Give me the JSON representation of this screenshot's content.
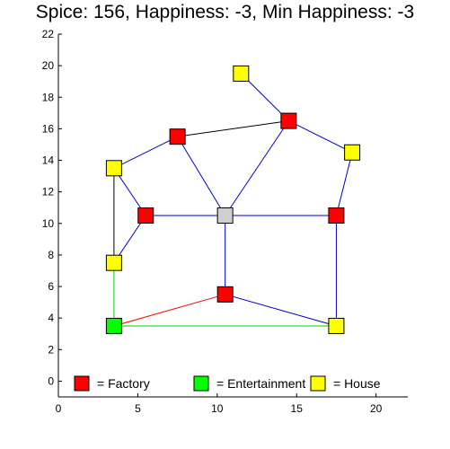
{
  "title": "Spice: 156, Happiness: -3, Min Happiness: -3",
  "chart_data": {
    "type": "network",
    "xlim": [
      0,
      22
    ],
    "ylim": [
      -1,
      22
    ],
    "x_ticks": [
      0,
      5,
      10,
      15,
      20
    ],
    "y_ticks": [
      0,
      2,
      4,
      6,
      8,
      10,
      12,
      14,
      16,
      18,
      20,
      22
    ],
    "node_colors": {
      "factory": "#ff0000",
      "entertainment": "#00ff00",
      "house": "#ffff00",
      "selected": "#d0d0d0"
    },
    "nodes": [
      {
        "id": "h1",
        "kind": "house",
        "x": 11.5,
        "y": 19.5
      },
      {
        "id": "f1",
        "kind": "factory",
        "x": 14.5,
        "y": 16.5
      },
      {
        "id": "f2",
        "kind": "factory",
        "x": 7.5,
        "y": 15.5
      },
      {
        "id": "h2",
        "kind": "house",
        "x": 18.5,
        "y": 14.5
      },
      {
        "id": "h3",
        "kind": "house",
        "x": 3.5,
        "y": 13.5
      },
      {
        "id": "f3",
        "kind": "factory",
        "x": 5.5,
        "y": 10.5
      },
      {
        "id": "s1",
        "kind": "selected",
        "x": 10.5,
        "y": 10.5
      },
      {
        "id": "f4",
        "kind": "factory",
        "x": 17.5,
        "y": 10.5
      },
      {
        "id": "h4",
        "kind": "house",
        "x": 3.5,
        "y": 7.5
      },
      {
        "id": "f5",
        "kind": "factory",
        "x": 10.5,
        "y": 5.5
      },
      {
        "id": "e1",
        "kind": "entertainment",
        "x": 3.5,
        "y": 3.5
      },
      {
        "id": "h5",
        "kind": "house",
        "x": 17.5,
        "y": 3.5
      }
    ],
    "edges": [
      {
        "from": "h1",
        "to": "f1",
        "color": "#0000cc"
      },
      {
        "from": "f2",
        "to": "f1",
        "color": "#000000"
      },
      {
        "from": "f1",
        "to": "h2",
        "color": "#0000cc"
      },
      {
        "from": "f1",
        "to": "s1",
        "color": "#0000cc"
      },
      {
        "from": "f2",
        "to": "s1",
        "color": "#0000cc"
      },
      {
        "from": "h3",
        "to": "f2",
        "color": "#0000cc"
      },
      {
        "from": "h3",
        "to": "f3",
        "color": "#0000cc"
      },
      {
        "from": "h3",
        "to": "h4",
        "color": "#000000"
      },
      {
        "from": "f3",
        "to": "h4",
        "color": "#0000cc"
      },
      {
        "from": "f3",
        "to": "s1",
        "color": "#0000cc"
      },
      {
        "from": "s1",
        "to": "f4",
        "color": "#0000cc"
      },
      {
        "from": "h2",
        "to": "f4",
        "color": "#0000cc"
      },
      {
        "from": "s1",
        "to": "f5",
        "color": "#0000cc"
      },
      {
        "from": "f4",
        "to": "h5",
        "color": "#0000cc"
      },
      {
        "from": "f5",
        "to": "h5",
        "color": "#0000cc"
      },
      {
        "from": "f5",
        "to": "e1",
        "color": "#ff0000"
      },
      {
        "from": "h4",
        "to": "e1",
        "color": "#00cc00"
      },
      {
        "from": "e1",
        "to": "h5",
        "color": "#00cc00"
      }
    ],
    "legend": {
      "position": "bottom",
      "items": [
        {
          "kind": "factory",
          "label": "= Factory",
          "color": "#ff0000"
        },
        {
          "kind": "entertainment",
          "label": "= Entertainment",
          "color": "#00ff00"
        },
        {
          "kind": "house",
          "label": "= House",
          "color": "#ffff00"
        }
      ]
    }
  }
}
